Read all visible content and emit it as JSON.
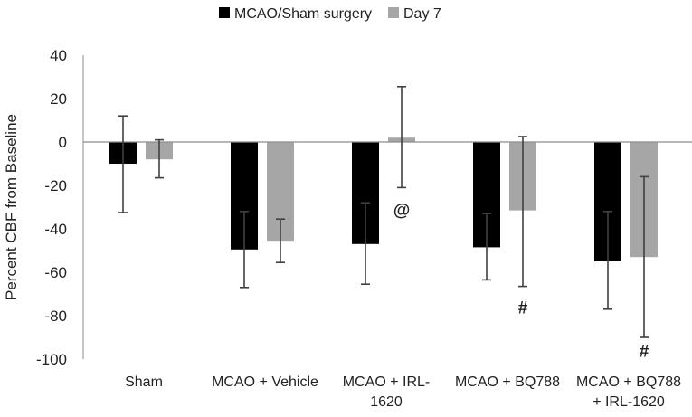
{
  "chart_data": {
    "type": "bar",
    "title": "",
    "xlabel": "",
    "ylabel": "Percent CBF from Baseline",
    "ylim": [
      -100,
      40
    ],
    "yticks": [
      40,
      20,
      0,
      -20,
      -40,
      -60,
      -80,
      -100
    ],
    "grid": false,
    "legend_position": "top-center",
    "categories": [
      [
        "Sham"
      ],
      [
        "MCAO + Vehicle"
      ],
      [
        "MCAO + IRL-",
        "1620"
      ],
      [
        "MCAO + BQ788"
      ],
      [
        "MCAO + BQ788",
        "+ IRL-1620"
      ]
    ],
    "series": [
      {
        "name": "MCAO/Sham surgery",
        "color": "#000000",
        "values": [
          -10,
          -49.5,
          -47,
          -48.5,
          -55
        ],
        "error": [
          [
            -32.5,
            12
          ],
          [
            -67,
            -32
          ],
          [
            -65.5,
            -28
          ],
          [
            -63.5,
            -33
          ],
          [
            -77,
            -32
          ]
        ]
      },
      {
        "name": "Day 7",
        "color": "#a6a6a6",
        "values": [
          -8,
          -45.5,
          2,
          -31.5,
          -53
        ],
        "error": [
          [
            -16.5,
            1
          ],
          [
            -55.5,
            -35.5
          ],
          [
            -21,
            25.5
          ],
          [
            -66.5,
            2.5
          ],
          [
            -90,
            -16
          ]
        ]
      }
    ],
    "annotations": [
      {
        "text": "@",
        "category_index": 2,
        "series_index": 1,
        "y": -31
      },
      {
        "text": "#",
        "category_index": 3,
        "series_index": 1,
        "y": -76
      },
      {
        "text": "#",
        "category_index": 4,
        "series_index": 1,
        "y": -96
      }
    ]
  }
}
